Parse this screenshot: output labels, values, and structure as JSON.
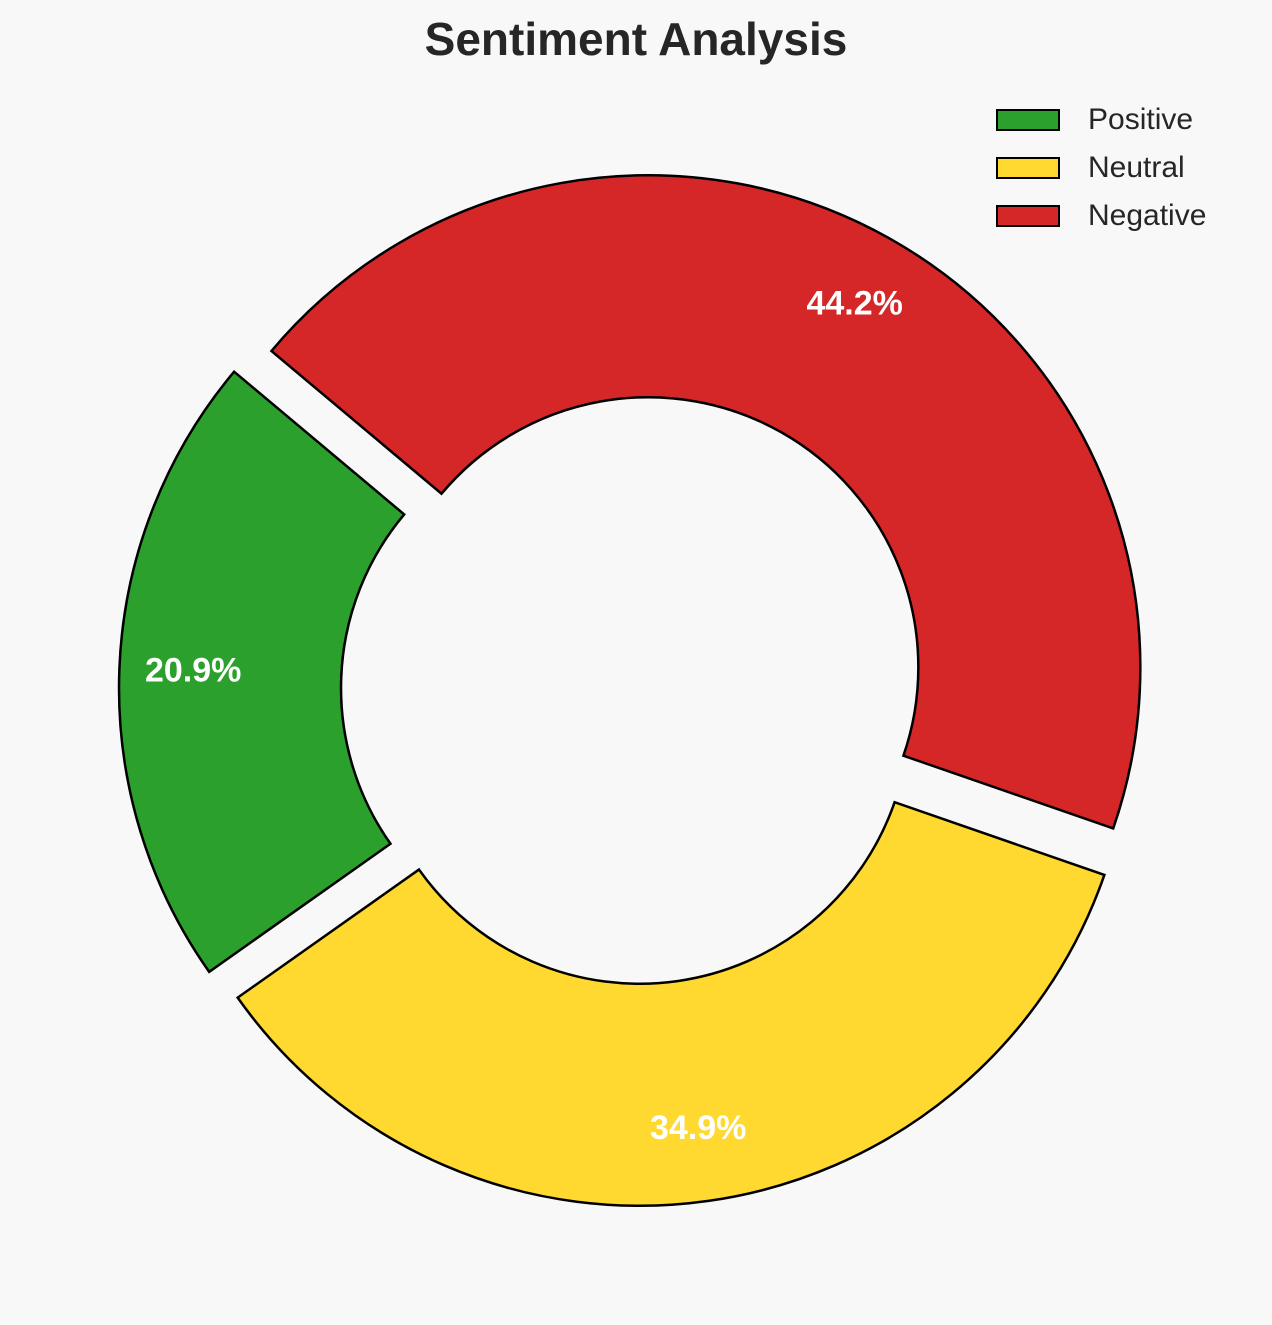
{
  "chart_data": {
    "type": "pie",
    "title": "Sentiment Analysis",
    "categories": [
      "Positive",
      "Neutral",
      "Negative"
    ],
    "values": [
      20.9,
      34.9,
      44.2
    ],
    "labels": [
      "20.9%",
      "34.9%",
      "44.2%"
    ],
    "colors": [
      "#2ca02c",
      "#ffd92f",
      "#d62728"
    ],
    "start_angle": 140,
    "direction": "counterclockwise",
    "donut": true,
    "exploded": true,
    "legend": {
      "position": "top-right",
      "entries": [
        "Positive",
        "Neutral",
        "Negative"
      ]
    }
  }
}
